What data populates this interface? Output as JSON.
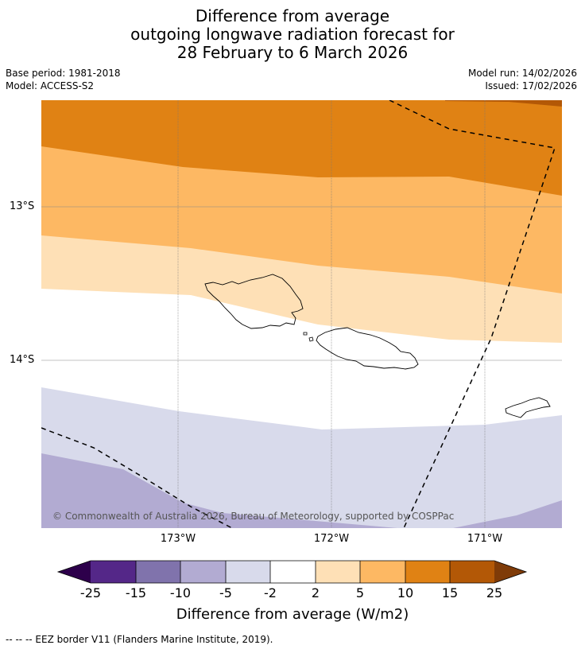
{
  "title": {
    "line1": "Difference from average",
    "line2": "outgoing longwave radiation forecast for",
    "line3": "28 February to 6 March 2026"
  },
  "meta": {
    "base_period": "Base period: 1981-2018",
    "model": "Model: ACCESS-S2",
    "model_run": "Model run: 14/02/2026",
    "issued": "Issued: 17/02/2026"
  },
  "map": {
    "lat_labels": [
      "13°S",
      "14°S"
    ],
    "lon_labels": [
      "173°W",
      "172°W",
      "171°W"
    ],
    "copyright": "© Commonwealth of Australia 2026, Bureau of Meteorology, supported by COSPPac",
    "colors": {
      "c_15_25": "#b35806",
      "c_10_15": "#e08214",
      "c_5_10": "#fdb863",
      "c_2_5": "#fee0b6",
      "c_m2_2": "#ffffff",
      "c_m5_m2": "#d8daeb",
      "c_m10_m5": "#b2abd2",
      "c_m15_m10": "#8073ac",
      "c_m25_m15": "#542788",
      "c_below": "#2d004b",
      "c_above": "#7f3b08"
    }
  },
  "colorbar": {
    "ticks": [
      "-25",
      "-15",
      "-10",
      "-5",
      "-2",
      "2",
      "5",
      "10",
      "15",
      "25"
    ],
    "title": "Difference from average (W/m2)"
  },
  "legend": {
    "eez_text": "--  --  -- EEZ border V11 (Flanders Marine Institute, 2019)."
  }
}
